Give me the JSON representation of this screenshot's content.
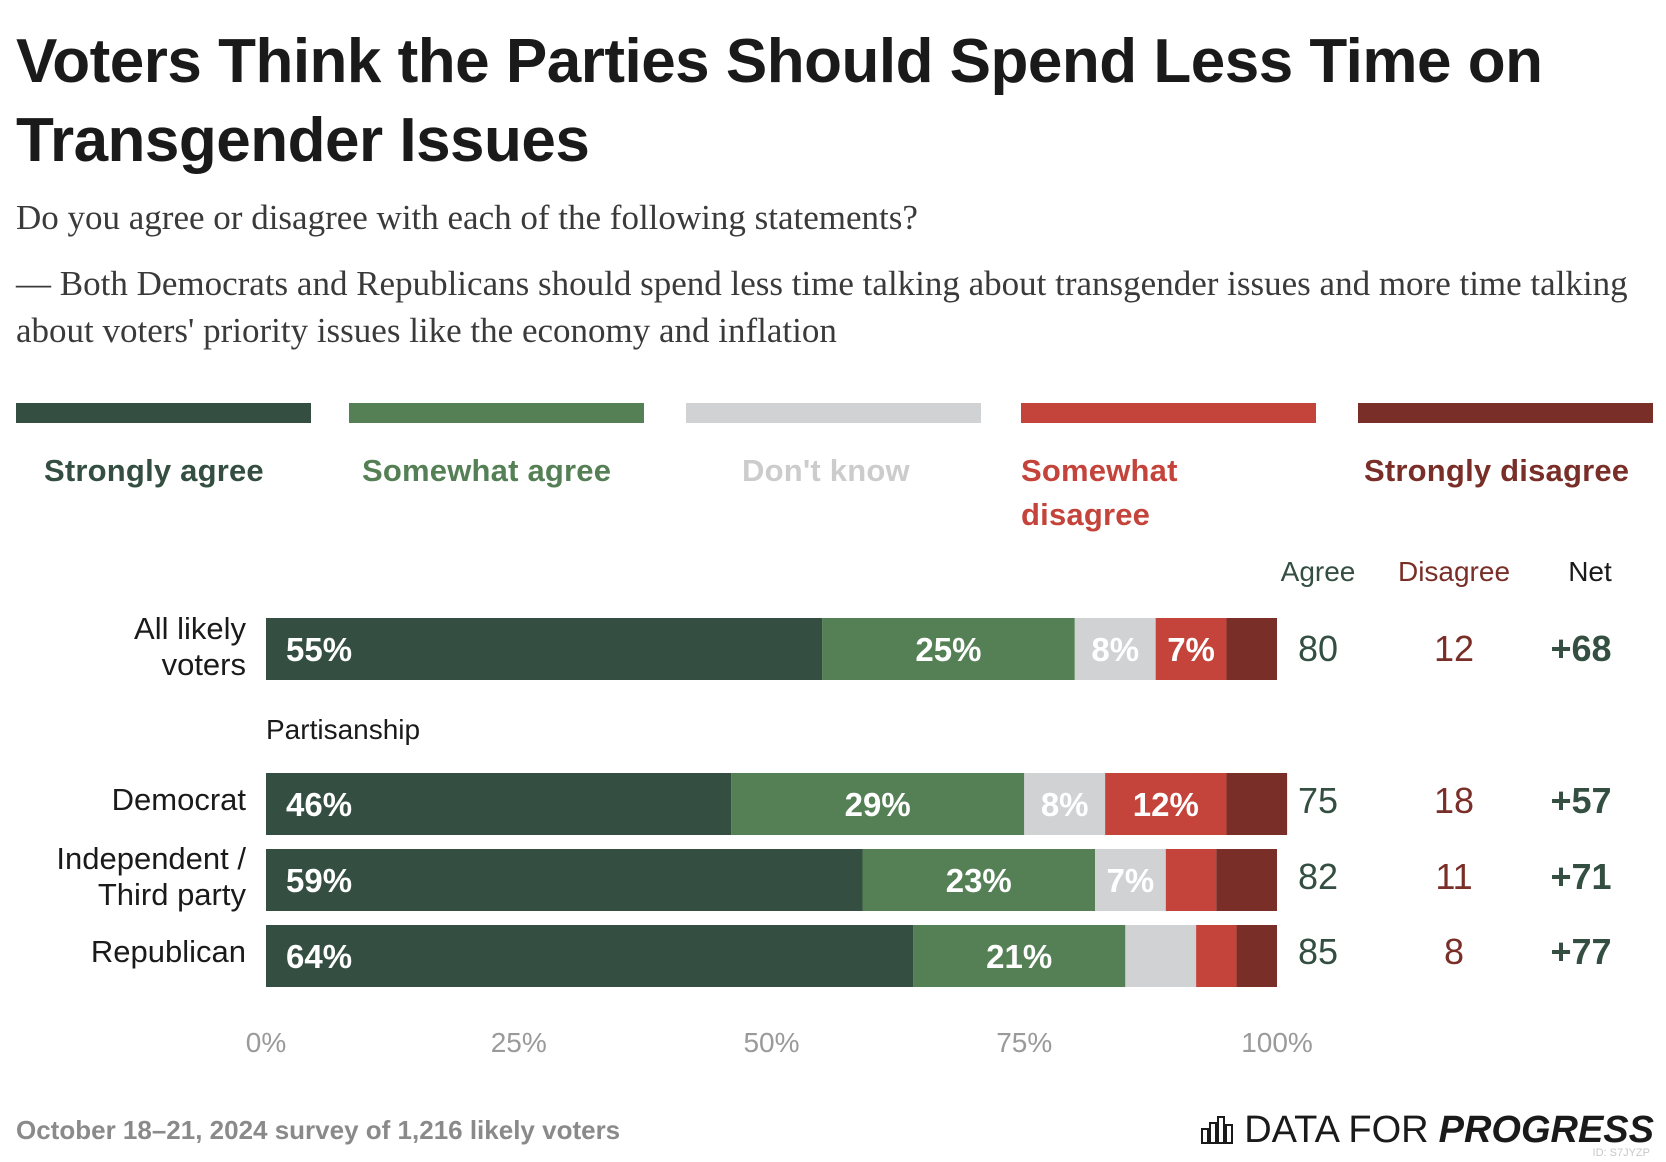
{
  "header": {
    "title": "Voters Think the Parties Should Spend Less Time on Transgender Issues",
    "question": "Do you agree or disagree with each of the following statements?",
    "statement": "— Both Democrats and Republicans should spend less time talking about transgender issues and more time talking about voters' priority issues like the economy and inflation"
  },
  "legend": [
    {
      "label": "Strongly agree",
      "color": "#344f42"
    },
    {
      "label": "Somewhat agree",
      "color": "#558055"
    },
    {
      "label": "Don't know",
      "color": "#d1d2d3"
    },
    {
      "label": "Somewhat disagree",
      "color": "#c4433a"
    },
    {
      "label": "Strongly disagree",
      "color": "#792e28"
    }
  ],
  "columns": {
    "agree": "Agree",
    "disagree": "Disagree",
    "net": "Net"
  },
  "colors": {
    "agree_text": "#344f42",
    "disagree_text": "#7a2e28",
    "label_light": "#ffffff"
  },
  "chart_data": {
    "type": "bar",
    "orientation": "horizontal-stacked",
    "categories": [
      "All likely voters",
      "Democrat",
      "Independent / Third party",
      "Republican"
    ],
    "series": [
      {
        "name": "Strongly agree",
        "values": [
          55,
          46,
          59,
          64
        ]
      },
      {
        "name": "Somewhat agree",
        "values": [
          25,
          29,
          23,
          21
        ]
      },
      {
        "name": "Don't know",
        "values": [
          8,
          8,
          7,
          7
        ]
      },
      {
        "name": "Somewhat disagree",
        "values": [
          7,
          12,
          5,
          4
        ]
      },
      {
        "name": "Strongly disagree",
        "values": [
          5,
          6,
          6,
          4
        ]
      }
    ],
    "data_labels": [
      [
        "55%",
        "25%",
        "8%",
        "7%",
        ""
      ],
      [
        "46%",
        "29%",
        "8%",
        "12%",
        ""
      ],
      [
        "59%",
        "23%",
        "7%",
        "",
        ""
      ],
      [
        "64%",
        "21%",
        "",
        "",
        ""
      ]
    ],
    "agree": [
      80,
      75,
      82,
      85
    ],
    "disagree": [
      12,
      18,
      11,
      8
    ],
    "net": [
      "+68",
      "+57",
      "+71",
      "+77"
    ],
    "group_label": "Partisanship",
    "xticks": [
      "0%",
      "25%",
      "50%",
      "75%",
      "100%"
    ],
    "xlim": [
      0,
      100
    ],
    "legend_position": "top"
  },
  "rows": [
    {
      "label_lines": [
        "All likely",
        "voters"
      ]
    },
    {
      "label_lines": [
        "Democrat"
      ]
    },
    {
      "label_lines": [
        "Independent /",
        "Third party"
      ]
    },
    {
      "label_lines": [
        "Republican"
      ]
    }
  ],
  "footer": {
    "note": "October 18–21, 2024 survey of 1,216 likely voters",
    "brand_light": "DATA FOR",
    "brand_strong": "PROGRESS",
    "chart_id": "ID: S7JYZP"
  }
}
